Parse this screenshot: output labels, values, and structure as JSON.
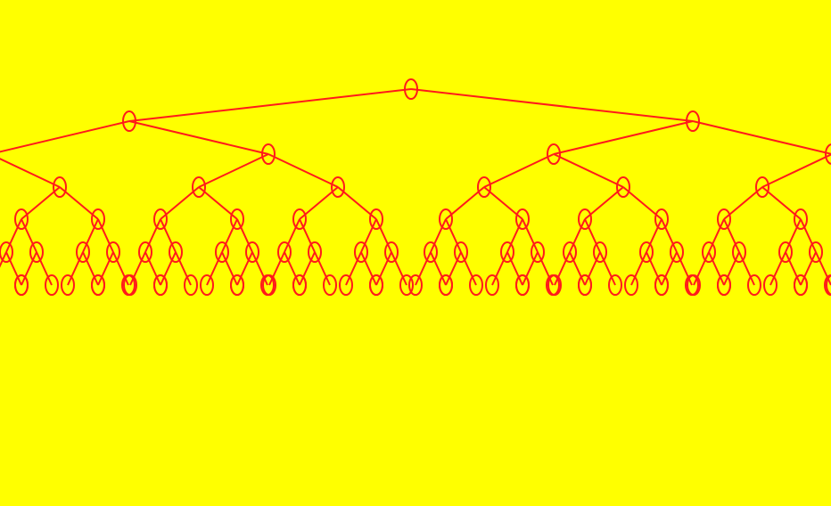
{
  "colors": {
    "background": "#FFFF00",
    "stroke": "#FF1A1A"
  },
  "tree": {
    "type": "binary-tree",
    "depth_levels": 7,
    "node_shape": "ellipse",
    "labels": []
  }
}
